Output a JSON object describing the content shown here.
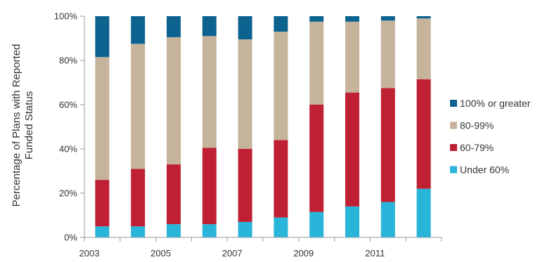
{
  "chart_data": {
    "type": "bar",
    "stacked": true,
    "percent": true,
    "x": [
      2003,
      2004,
      2005,
      2006,
      2007,
      2008,
      2009,
      2010,
      2011,
      2012
    ],
    "x_tick_labels": [
      "2003",
      "",
      "2005",
      "",
      "2007",
      "",
      "2009",
      "",
      "2011",
      ""
    ],
    "ylabel": "Percentage of Plans with Reported Funded Status",
    "ylabel_lines": [
      "Percentage of Plans with Reported",
      "Funded Status"
    ],
    "ylim": [
      0,
      100
    ],
    "y_ticks": [
      0,
      20,
      40,
      60,
      80,
      100
    ],
    "y_tick_labels": [
      "0%",
      "20%",
      "40%",
      "60%",
      "80%",
      "100%"
    ],
    "grid": false,
    "legend_position": "right",
    "series": [
      {
        "name": "Under 60%",
        "color": "#29b5d9",
        "values": [
          5,
          5,
          6,
          6,
          7,
          9,
          11.5,
          14,
          16,
          22
        ]
      },
      {
        "name": "60-79%",
        "color": "#bf2033",
        "values": [
          21,
          26,
          27,
          34.5,
          33,
          35,
          48.5,
          51.5,
          51.5,
          49.5
        ]
      },
      {
        "name": "80-99%",
        "color": "#c5b39b",
        "values": [
          55.5,
          56.5,
          57.5,
          50.5,
          49.5,
          49,
          37.5,
          32,
          30.5,
          27.5
        ]
      },
      {
        "name": "100% or greater",
        "color": "#0d6390",
        "values": [
          18.5,
          12.5,
          9.5,
          9,
          10.5,
          7,
          2.5,
          2.5,
          2,
          1
        ]
      }
    ],
    "legend_order": [
      "100% or greater",
      "80-99%",
      "60-79%",
      "Under 60%"
    ]
  }
}
